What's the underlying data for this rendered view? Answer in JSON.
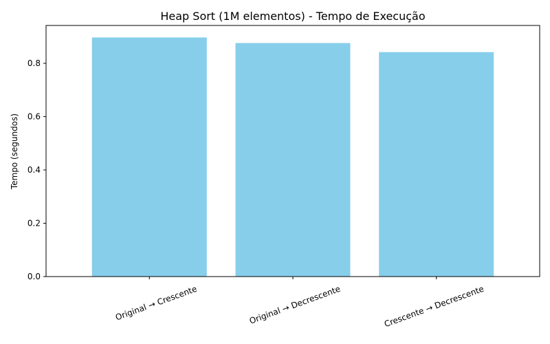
{
  "chart_data": {
    "type": "bar",
    "title": "Heap Sort (1M elementos) - Tempo de Execução",
    "xlabel": "",
    "ylabel": "Tempo (segundos)",
    "categories": [
      "Original → Crescente",
      "Original → Decrescente",
      "Crescente → Decrescente"
    ],
    "values": [
      0.897,
      0.876,
      0.842
    ],
    "ylim": [
      0,
      0.942
    ],
    "yticks": [
      0.0,
      0.2,
      0.4,
      0.6,
      0.8
    ],
    "ytick_labels": [
      "0.0",
      "0.2",
      "0.4",
      "0.6",
      "0.8"
    ],
    "bar_color": "#87CEEB",
    "grid": false,
    "legend": "none"
  }
}
